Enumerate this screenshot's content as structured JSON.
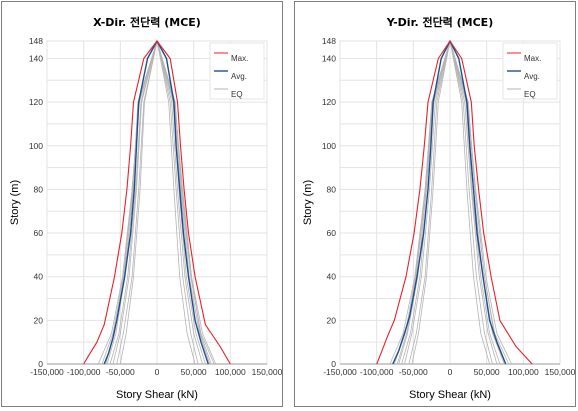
{
  "chart_data": [
    {
      "type": "line",
      "title": "X-Dir. 전단력 (MCE)",
      "xlabel": "Story Shear (kN)",
      "ylabel": "Story (m)",
      "xlim": [
        -150000,
        150000
      ],
      "ylim": [
        0,
        148
      ],
      "xticks": [
        "-150,000",
        "-100,000",
        "-50,000",
        "0",
        "50,000",
        "100,000",
        "150,000"
      ],
      "yticks": [
        "0",
        "20",
        "40",
        "60",
        "80",
        "100",
        "120",
        "140",
        "148"
      ],
      "grid": true,
      "legend_position": "top-right",
      "colors": {
        "max": "#e8202a",
        "avg": "#1f4e8c",
        "eq": "#b4b4b4"
      },
      "series": [
        {
          "name": "Max.",
          "points": [
            [
              -100000,
              0
            ],
            [
              -93000,
              4
            ],
            [
              -82000,
              10
            ],
            [
              -72000,
              18
            ],
            [
              -58000,
              40
            ],
            [
              -48000,
              60
            ],
            [
              -41000,
              80
            ],
            [
              -36000,
              100
            ],
            [
              -32000,
              120
            ],
            [
              -18000,
              140
            ],
            [
              0,
              148
            ],
            [
              18000,
              140
            ],
            [
              28000,
              120
            ],
            [
              32000,
              100
            ],
            [
              37000,
              80
            ],
            [
              43000,
              60
            ],
            [
              52000,
              40
            ],
            [
              66000,
              18
            ],
            [
              86000,
              8
            ],
            [
              100000,
              0
            ]
          ]
        },
        {
          "name": "Avg.",
          "points": [
            [
              -72000,
              0
            ],
            [
              -66000,
              5
            ],
            [
              -60000,
              12
            ],
            [
              -55000,
              20
            ],
            [
              -44000,
              40
            ],
            [
              -36000,
              60
            ],
            [
              -31000,
              80
            ],
            [
              -28000,
              100
            ],
            [
              -25000,
              120
            ],
            [
              -13000,
              140
            ],
            [
              0,
              148
            ],
            [
              13000,
              140
            ],
            [
              23000,
              120
            ],
            [
              26000,
              100
            ],
            [
              31000,
              80
            ],
            [
              36000,
              60
            ],
            [
              43000,
              40
            ],
            [
              52000,
              20
            ],
            [
              60000,
              10
            ],
            [
              70000,
              0
            ]
          ]
        },
        {
          "name": "EQ",
          "points": [
            [
              -80000,
              0
            ],
            [
              -62000,
              14
            ],
            [
              -47000,
              40
            ],
            [
              -34000,
              80
            ],
            [
              -24000,
              120
            ],
            [
              0,
              148
            ],
            [
              24000,
              120
            ],
            [
              34000,
              80
            ],
            [
              47000,
              40
            ],
            [
              62000,
              14
            ],
            [
              80000,
              0
            ]
          ]
        },
        {
          "points": [
            [
              -60000,
              0
            ],
            [
              -50000,
              14
            ],
            [
              -38000,
              40
            ],
            [
              -28000,
              80
            ],
            [
              -21000,
              120
            ],
            [
              0,
              148
            ],
            [
              20000,
              120
            ],
            [
              28000,
              80
            ],
            [
              38000,
              40
            ],
            [
              50000,
              14
            ],
            [
              62000,
              0
            ]
          ]
        },
        {
          "points": [
            [
              -68000,
              0
            ],
            [
              -56000,
              14
            ],
            [
              -44000,
              40
            ],
            [
              -32000,
              80
            ],
            [
              -24000,
              120
            ],
            [
              0,
              148
            ],
            [
              23000,
              120
            ],
            [
              32000,
              80
            ],
            [
              44000,
              40
            ],
            [
              58000,
              14
            ],
            [
              72000,
              0
            ]
          ]
        },
        {
          "points": [
            [
              -55000,
              0
            ],
            [
              -46000,
              14
            ],
            [
              -34000,
              40
            ],
            [
              -25000,
              80
            ],
            [
              -18000,
              120
            ],
            [
              0,
              148
            ],
            [
              18000,
              120
            ],
            [
              26000,
              80
            ],
            [
              35000,
              40
            ],
            [
              46000,
              14
            ],
            [
              56000,
              0
            ]
          ]
        },
        {
          "points": [
            [
              -75000,
              0
            ],
            [
              -60000,
              14
            ],
            [
              -46000,
              40
            ],
            [
              -33000,
              80
            ],
            [
              -26000,
              120
            ],
            [
              0,
              148
            ],
            [
              25000,
              120
            ],
            [
              33000,
              80
            ],
            [
              46000,
              40
            ],
            [
              60000,
              14
            ],
            [
              78000,
              0
            ]
          ]
        },
        {
          "points": [
            [
              -64000,
              0
            ],
            [
              -52000,
              14
            ],
            [
              -40000,
              40
            ],
            [
              -29000,
              80
            ],
            [
              -22000,
              120
            ],
            [
              0,
              148
            ],
            [
              22000,
              120
            ],
            [
              30000,
              80
            ],
            [
              40000,
              40
            ],
            [
              53000,
              14
            ],
            [
              66000,
              0
            ]
          ]
        },
        {
          "points": [
            [
              -50000,
              0
            ],
            [
              -42000,
              14
            ],
            [
              -32000,
              40
            ],
            [
              -23000,
              80
            ],
            [
              -17000,
              120
            ],
            [
              0,
              148
            ],
            [
              16000,
              120
            ],
            [
              23000,
              80
            ],
            [
              31000,
              40
            ],
            [
              41000,
              14
            ],
            [
              52000,
              0
            ]
          ]
        },
        {
          "points": [
            [
              -70000,
              0
            ],
            [
              -58000,
              14
            ],
            [
              -45000,
              40
            ],
            [
              -34000,
              80
            ],
            [
              -25000,
              120
            ],
            [
              0,
              148
            ],
            [
              24000,
              120
            ],
            [
              35000,
              80
            ],
            [
              47000,
              40
            ],
            [
              59000,
              14
            ],
            [
              74000,
              0
            ]
          ]
        }
      ]
    },
    {
      "type": "line",
      "title": "Y-Dir. 전단력 (MCE)",
      "xlabel": "Story Shear (kN)",
      "ylabel": "Story (m)",
      "xlim": [
        -150000,
        150000
      ],
      "ylim": [
        0,
        148
      ],
      "xticks": [
        "-150,000",
        "-100,000",
        "-50,000",
        "0",
        "50,000",
        "100,000",
        "150,000"
      ],
      "yticks": [
        "0",
        "20",
        "40",
        "60",
        "80",
        "100",
        "120",
        "140",
        "148"
      ],
      "grid": true,
      "legend_position": "top-right",
      "colors": {
        "max": "#e8202a",
        "avg": "#1f4e8c",
        "eq": "#b4b4b4"
      },
      "series": [
        {
          "name": "Max.",
          "points": [
            [
              -100000,
              0
            ],
            [
              -94000,
              5
            ],
            [
              -86000,
              12
            ],
            [
              -76000,
              20
            ],
            [
              -60000,
              40
            ],
            [
              -49000,
              60
            ],
            [
              -41000,
              80
            ],
            [
              -35000,
              100
            ],
            [
              -30000,
              120
            ],
            [
              -16000,
              140
            ],
            [
              0,
              148
            ],
            [
              16000,
              140
            ],
            [
              29000,
              120
            ],
            [
              33000,
              100
            ],
            [
              39000,
              80
            ],
            [
              46000,
              60
            ],
            [
              56000,
              40
            ],
            [
              68000,
              20
            ],
            [
              90000,
              8
            ],
            [
              112000,
              0
            ]
          ]
        },
        {
          "name": "Avg.",
          "points": [
            [
              -78000,
              0
            ],
            [
              -70000,
              6
            ],
            [
              -62000,
              14
            ],
            [
              -55000,
              22
            ],
            [
              -45000,
              40
            ],
            [
              -36000,
              60
            ],
            [
              -30000,
              80
            ],
            [
              -26000,
              100
            ],
            [
              -23000,
              120
            ],
            [
              -12000,
              140
            ],
            [
              0,
              148
            ],
            [
              12000,
              140
            ],
            [
              23000,
              120
            ],
            [
              27000,
              100
            ],
            [
              32000,
              80
            ],
            [
              37000,
              60
            ],
            [
              45000,
              40
            ],
            [
              54000,
              20
            ],
            [
              64000,
              10
            ],
            [
              76000,
              0
            ]
          ]
        },
        {
          "name": "EQ",
          "points": [
            [
              -82000,
              0
            ],
            [
              -64000,
              14
            ],
            [
              -48000,
              40
            ],
            [
              -34000,
              80
            ],
            [
              -24000,
              120
            ],
            [
              0,
              148
            ],
            [
              24000,
              120
            ],
            [
              35000,
              80
            ],
            [
              49000,
              40
            ],
            [
              64000,
              14
            ],
            [
              84000,
              0
            ]
          ]
        },
        {
          "points": [
            [
              -62000,
              0
            ],
            [
              -52000,
              14
            ],
            [
              -39000,
              40
            ],
            [
              -28000,
              80
            ],
            [
              -20000,
              120
            ],
            [
              0,
              148
            ],
            [
              20000,
              120
            ],
            [
              29000,
              80
            ],
            [
              40000,
              40
            ],
            [
              52000,
              14
            ],
            [
              64000,
              0
            ]
          ]
        },
        {
          "points": [
            [
              -70000,
              0
            ],
            [
              -58000,
              14
            ],
            [
              -44000,
              40
            ],
            [
              -32000,
              80
            ],
            [
              -23000,
              120
            ],
            [
              0,
              148
            ],
            [
              23000,
              120
            ],
            [
              32000,
              80
            ],
            [
              45000,
              40
            ],
            [
              58000,
              14
            ],
            [
              74000,
              0
            ]
          ]
        },
        {
          "points": [
            [
              -56000,
              0
            ],
            [
              -46000,
              14
            ],
            [
              -34000,
              40
            ],
            [
              -25000,
              80
            ],
            [
              -18000,
              120
            ],
            [
              0,
              148
            ],
            [
              18000,
              120
            ],
            [
              26000,
              80
            ],
            [
              36000,
              40
            ],
            [
              47000,
              14
            ],
            [
              58000,
              0
            ]
          ]
        },
        {
          "points": [
            [
              -76000,
              0
            ],
            [
              -61000,
              14
            ],
            [
              -47000,
              40
            ],
            [
              -34000,
              80
            ],
            [
              -25000,
              120
            ],
            [
              0,
              148
            ],
            [
              25000,
              120
            ],
            [
              34000,
              80
            ],
            [
              47000,
              40
            ],
            [
              61000,
              14
            ],
            [
              80000,
              0
            ]
          ]
        },
        {
          "points": [
            [
              -66000,
              0
            ],
            [
              -54000,
              14
            ],
            [
              -41000,
              40
            ],
            [
              -30000,
              80
            ],
            [
              -22000,
              120
            ],
            [
              0,
              148
            ],
            [
              22000,
              120
            ],
            [
              30000,
              80
            ],
            [
              42000,
              40
            ],
            [
              54000,
              14
            ],
            [
              68000,
              0
            ]
          ]
        },
        {
          "points": [
            [
              -52000,
              0
            ],
            [
              -43000,
              14
            ],
            [
              -32000,
              40
            ],
            [
              -23000,
              80
            ],
            [
              -16000,
              120
            ],
            [
              0,
              148
            ],
            [
              16000,
              120
            ],
            [
              23000,
              80
            ],
            [
              32000,
              40
            ],
            [
              42000,
              14
            ],
            [
              54000,
              0
            ]
          ]
        },
        {
          "points": [
            [
              -72000,
              0
            ],
            [
              -59000,
              14
            ],
            [
              -46000,
              40
            ],
            [
              -33000,
              80
            ],
            [
              -24000,
              120
            ],
            [
              0,
              148
            ],
            [
              24000,
              120
            ],
            [
              34000,
              80
            ],
            [
              47000,
              40
            ],
            [
              60000,
              14
            ],
            [
              76000,
              0
            ]
          ]
        }
      ]
    }
  ]
}
